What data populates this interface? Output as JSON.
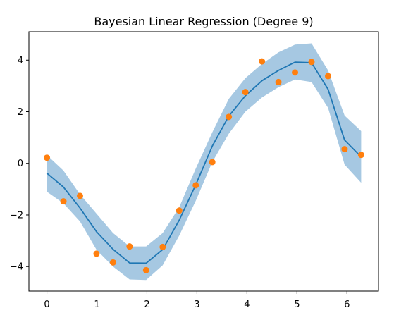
{
  "chart_data": {
    "type": "line",
    "title": "Bayesian Linear Regression (Degree 9)",
    "xlabel": "",
    "ylabel": "",
    "xlim": [
      -0.36,
      6.63
    ],
    "ylim": [
      -4.95,
      5.1
    ],
    "xticks": [
      0,
      1,
      2,
      3,
      4,
      5,
      6
    ],
    "yticks": [
      -4,
      -2,
      0,
      2,
      4
    ],
    "grid": false,
    "legend": "none",
    "colors": {
      "line": "#1f77b4",
      "band": "#a6c8e2",
      "points": "#ff7f0e"
    },
    "x": [
      0,
      0.3307,
      0.6614,
      0.9921,
      1.3228,
      1.6535,
      1.9842,
      2.3149,
      2.6456,
      2.9762,
      3.3069,
      3.6376,
      3.9683,
      4.299,
      4.6297,
      4.9604,
      5.2911,
      5.6218,
      5.9525,
      6.2832
    ],
    "series": [
      {
        "kind": "band",
        "upper": [
          0.32,
          -0.28,
          -1.2,
          -1.95,
          -2.7,
          -3.22,
          -3.22,
          -2.7,
          -1.7,
          -0.2,
          1.2,
          2.5,
          3.3,
          3.85,
          4.3,
          4.6,
          4.65,
          3.6,
          1.85,
          1.25
        ],
        "lower": [
          -1.1,
          -1.55,
          -2.25,
          -3.35,
          -4.0,
          -4.5,
          -4.52,
          -3.95,
          -2.8,
          -1.45,
          0.05,
          1.15,
          2.0,
          2.55,
          2.95,
          3.25,
          3.15,
          2.15,
          -0.05,
          -0.75
        ]
      },
      {
        "kind": "line",
        "y": [
          -0.38,
          -0.92,
          -1.73,
          -2.65,
          -3.33,
          -3.86,
          -3.87,
          -3.34,
          -2.2,
          -0.83,
          0.67,
          1.83,
          2.62,
          3.2,
          3.6,
          3.92,
          3.9,
          2.87,
          0.9,
          0.25
        ]
      },
      {
        "kind": "scatter",
        "y": [
          0.22,
          -1.47,
          -1.26,
          -3.5,
          -3.84,
          -3.22,
          -4.14,
          -3.24,
          -1.83,
          -0.85,
          0.05,
          1.8,
          2.76,
          3.95,
          3.15,
          3.52,
          3.93,
          3.38,
          0.55,
          0.33
        ]
      }
    ]
  }
}
